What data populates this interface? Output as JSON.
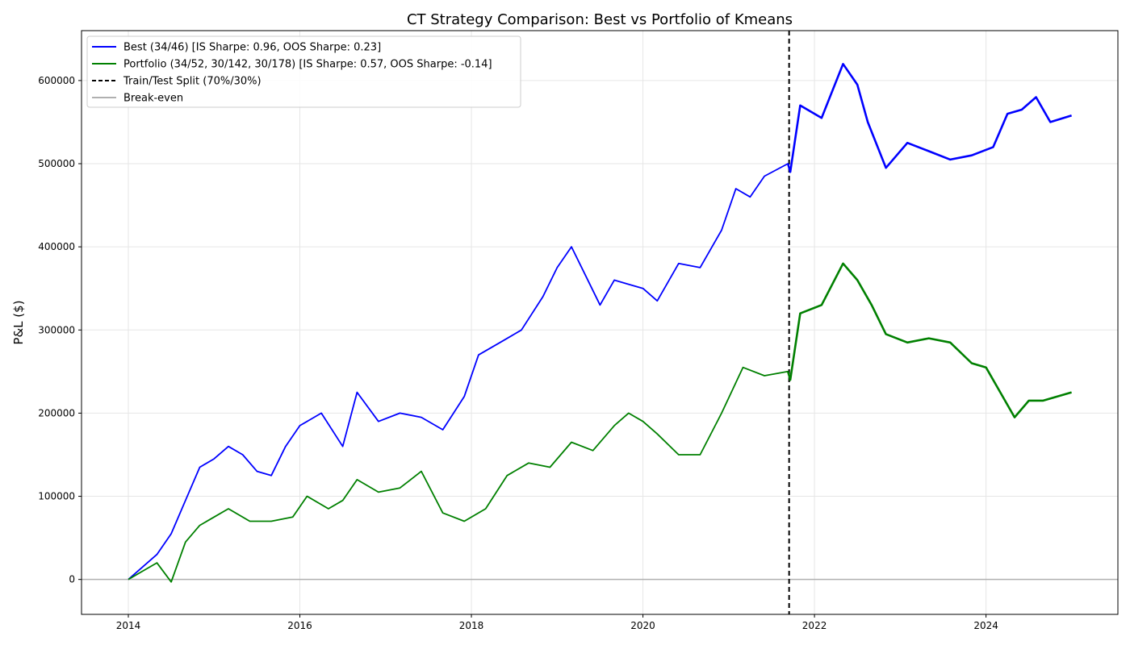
{
  "chart_data": {
    "type": "line",
    "title": "CT Strategy Comparison: Best vs Portfolio of Kmeans",
    "xlabel": "",
    "ylabel": "P&L ($)",
    "x_ticks": [
      "2014",
      "2016",
      "2018",
      "2020",
      "2022",
      "2024"
    ],
    "y_ticks": [
      "0",
      "100000",
      "200000",
      "300000",
      "400000",
      "500000",
      "600000"
    ],
    "xlim": [
      "2013-06-15",
      "2025-07-15"
    ],
    "ylim": [
      -42000,
      660000
    ],
    "grid": true,
    "legend_position": "upper-left",
    "split": {
      "label": "Train/Test Split (70%/30%)",
      "date": "2021-09-15",
      "color": "#000000"
    },
    "breakeven": {
      "label": "Break-even",
      "value": 0,
      "color": "#b0b0b0"
    },
    "series": [
      {
        "name": "Best (34/46) [IS Sharpe: 0.96, OOS Sharpe: 0.23]",
        "color": "#0000ff",
        "x": [
          "2014-01-01",
          "2014-03-01",
          "2014-05-01",
          "2014-07-01",
          "2014-09-01",
          "2014-11-01",
          "2015-01-01",
          "2015-03-01",
          "2015-05-01",
          "2015-07-01",
          "2015-09-01",
          "2015-11-01",
          "2016-01-01",
          "2016-04-01",
          "2016-07-01",
          "2016-09-01",
          "2016-12-01",
          "2017-03-01",
          "2017-06-01",
          "2017-09-01",
          "2017-12-01",
          "2018-02-01",
          "2018-05-01",
          "2018-08-01",
          "2018-11-01",
          "2019-01-01",
          "2019-03-01",
          "2019-05-01",
          "2019-07-01",
          "2019-09-01",
          "2019-11-01",
          "2020-01-01",
          "2020-03-01",
          "2020-06-01",
          "2020-09-01",
          "2020-12-01",
          "2021-02-01",
          "2021-04-01",
          "2021-06-01",
          "2021-09-10",
          "2021-09-20",
          "2021-11-01",
          "2022-02-01",
          "2022-05-01",
          "2022-07-01",
          "2022-08-15",
          "2022-11-01",
          "2023-02-01",
          "2023-05-01",
          "2023-08-01",
          "2023-11-01",
          "2024-02-01",
          "2024-04-01",
          "2024-06-01",
          "2024-08-01",
          "2024-10-01",
          "2024-12-31"
        ],
        "y": [
          0,
          15000,
          30000,
          55000,
          95000,
          135000,
          145000,
          160000,
          150000,
          130000,
          125000,
          160000,
          185000,
          200000,
          160000,
          225000,
          190000,
          200000,
          195000,
          180000,
          220000,
          270000,
          285000,
          300000,
          340000,
          375000,
          400000,
          365000,
          330000,
          360000,
          355000,
          350000,
          335000,
          380000,
          375000,
          420000,
          470000,
          460000,
          485000,
          500000,
          490000,
          570000,
          555000,
          620000,
          595000,
          550000,
          495000,
          525000,
          515000,
          505000,
          510000,
          520000,
          560000,
          565000,
          580000,
          550000,
          558000
        ]
      },
      {
        "name": "Portfolio (34/52, 30/142, 30/178) [IS Sharpe: 0.57, OOS Sharpe: -0.14]",
        "color": "#008000",
        "x": [
          "2014-01-01",
          "2014-03-01",
          "2014-05-01",
          "2014-07-01",
          "2014-09-01",
          "2014-11-01",
          "2015-01-01",
          "2015-03-01",
          "2015-06-01",
          "2015-09-01",
          "2015-12-01",
          "2016-02-01",
          "2016-05-01",
          "2016-07-01",
          "2016-09-01",
          "2016-12-01",
          "2017-03-01",
          "2017-06-01",
          "2017-09-01",
          "2017-12-01",
          "2018-03-01",
          "2018-06-01",
          "2018-09-01",
          "2018-12-01",
          "2019-03-01",
          "2019-06-01",
          "2019-09-01",
          "2019-11-01",
          "2020-01-01",
          "2020-03-01",
          "2020-06-01",
          "2020-09-01",
          "2020-12-01",
          "2021-03-01",
          "2021-06-01",
          "2021-09-10",
          "2021-09-20",
          "2021-11-01",
          "2022-02-01",
          "2022-05-01",
          "2022-07-01",
          "2022-09-01",
          "2022-11-01",
          "2023-02-01",
          "2023-05-01",
          "2023-08-01",
          "2023-11-01",
          "2024-01-01",
          "2024-03-01",
          "2024-05-01",
          "2024-07-01",
          "2024-09-01",
          "2024-12-31"
        ],
        "y": [
          0,
          10000,
          20000,
          -3000,
          45000,
          65000,
          75000,
          85000,
          70000,
          70000,
          75000,
          100000,
          85000,
          95000,
          120000,
          105000,
          110000,
          130000,
          80000,
          70000,
          85000,
          125000,
          140000,
          135000,
          165000,
          155000,
          185000,
          200000,
          190000,
          175000,
          150000,
          150000,
          200000,
          255000,
          245000,
          250000,
          240000,
          320000,
          330000,
          380000,
          360000,
          330000,
          295000,
          285000,
          290000,
          285000,
          260000,
          255000,
          225000,
          195000,
          215000,
          215000,
          225000
        ]
      }
    ]
  }
}
